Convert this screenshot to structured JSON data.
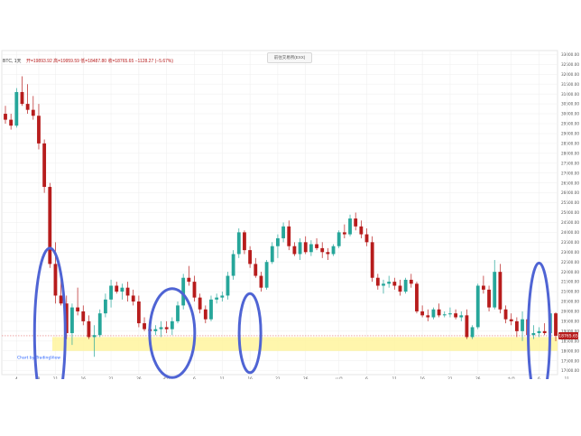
{
  "top_badge": "前往交易所(EXX)",
  "header": {
    "symbol": "BTC, 1天",
    "ohlc": "开=19893.92  高=19959.59  低=18487.80  收=18765.65  −1128.27 (−5.67%)"
  },
  "watermark": "Chart by TradingView",
  "current_price_label": "18765.65",
  "colors": {
    "up": "#26a69a",
    "down": "#b71c1c",
    "highlight_band": "#fff59d",
    "circle": "#4f64d4",
    "price_line": "#e57373"
  },
  "chart_data": {
    "type": "candlestick",
    "title": "BTC, 1天",
    "ylim": [
      16800,
      33200
    ],
    "y_ticks": [
      "17000.00",
      "17500.00",
      "18000.00",
      "18500.00",
      "19000.00",
      "19500.00",
      "20000.00",
      "20500.00",
      "21000.00",
      "21500.00",
      "22000.00",
      "22500.00",
      "23000.00",
      "23500.00",
      "24000.00",
      "24500.00",
      "25000.00",
      "25500.00",
      "26000.00",
      "26500.00",
      "27000.00",
      "27500.00",
      "28000.00",
      "28500.00",
      "29000.00",
      "29500.00",
      "30000.00",
      "30500.00",
      "31000.00",
      "31500.00",
      "32000.00",
      "32500.00",
      "33000.00"
    ],
    "x_ticks": [
      {
        "label": "4",
        "index": 2
      },
      {
        "label": "8",
        "index": 6
      },
      {
        "label": "11",
        "index": 9
      },
      {
        "label": "16",
        "index": 14
      },
      {
        "label": "21",
        "index": 19
      },
      {
        "label": "26",
        "index": 24
      },
      {
        "label": "七月",
        "index": 29
      },
      {
        "label": "6",
        "index": 34
      },
      {
        "label": "11",
        "index": 39
      },
      {
        "label": "16",
        "index": 44
      },
      {
        "label": "21",
        "index": 49
      },
      {
        "label": "26",
        "index": 54
      },
      {
        "label": "八月",
        "index": 60
      },
      {
        "label": "6",
        "index": 65
      },
      {
        "label": "11",
        "index": 70
      },
      {
        "label": "16",
        "index": 75
      },
      {
        "label": "21",
        "index": 80
      },
      {
        "label": "26",
        "index": 85
      },
      {
        "label": "九月",
        "index": 91
      },
      {
        "label": "6",
        "index": 96
      },
      {
        "label": "11",
        "index": 101
      },
      {
        "label": "16",
        "index": 106
      },
      {
        "label": "21",
        "index": 111
      },
      {
        "label": "26",
        "index": 116
      }
    ],
    "candles": [
      [
        30000,
        30400,
        29500,
        29700
      ],
      [
        29700,
        30000,
        29200,
        29400
      ],
      [
        29400,
        31300,
        29300,
        31100
      ],
      [
        31100,
        31900,
        30400,
        30500
      ],
      [
        30500,
        31500,
        30000,
        30200
      ],
      [
        30200,
        30900,
        29700,
        29900
      ],
      [
        29900,
        30500,
        28200,
        28500
      ],
      [
        28500,
        28700,
        26000,
        26300
      ],
      [
        26300,
        26500,
        22200,
        22400
      ],
      [
        22400,
        23500,
        20400,
        20800
      ],
      [
        20800,
        21600,
        20300,
        20400
      ],
      [
        20400,
        20800,
        18600,
        18900
      ],
      [
        18900,
        20400,
        18300,
        20200
      ],
      [
        20200,
        21200,
        19800,
        20000
      ],
      [
        20000,
        20300,
        19300,
        19500
      ],
      [
        19500,
        19800,
        18600,
        18700
      ],
      [
        18700,
        19300,
        17700,
        18800
      ],
      [
        18800,
        20100,
        18700,
        19900
      ],
      [
        19900,
        20900,
        19700,
        20600
      ],
      [
        20600,
        21600,
        20200,
        21300
      ],
      [
        21300,
        21500,
        20900,
        21000
      ],
      [
        21000,
        21400,
        20600,
        21200
      ],
      [
        21200,
        21500,
        20500,
        20800
      ],
      [
        20800,
        21100,
        20300,
        20500
      ],
      [
        20500,
        20800,
        19200,
        19400
      ],
      [
        19400,
        19700,
        19000,
        19100
      ],
      [
        19100,
        19400,
        18900,
        19000
      ],
      [
        19000,
        19300,
        18800,
        19100
      ],
      [
        19100,
        19500,
        18700,
        19200
      ],
      [
        19200,
        19500,
        18900,
        19100
      ],
      [
        19100,
        19700,
        18800,
        19500
      ],
      [
        19500,
        20500,
        19400,
        20300
      ],
      [
        20300,
        21900,
        20100,
        21700
      ],
      [
        21700,
        22300,
        21300,
        21500
      ],
      [
        21500,
        21800,
        20500,
        20700
      ],
      [
        20700,
        20900,
        19900,
        20100
      ],
      [
        20100,
        20300,
        19400,
        19600
      ],
      [
        19600,
        20800,
        19500,
        20600
      ],
      [
        20600,
        20900,
        20400,
        20700
      ],
      [
        20700,
        21000,
        20500,
        20800
      ],
      [
        20800,
        22000,
        20600,
        21800
      ],
      [
        21800,
        23100,
        21600,
        22900
      ],
      [
        22900,
        24200,
        22700,
        24000
      ],
      [
        24000,
        24100,
        22900,
        23100
      ],
      [
        23100,
        23300,
        22200,
        22400
      ],
      [
        22400,
        22700,
        21700,
        21800
      ],
      [
        21800,
        22000,
        21000,
        21200
      ],
      [
        21200,
        22600,
        21100,
        22500
      ],
      [
        22500,
        23500,
        22400,
        23300
      ],
      [
        23300,
        23900,
        22700,
        23700
      ],
      [
        23700,
        24500,
        23500,
        24300
      ],
      [
        24300,
        24600,
        23100,
        23300
      ],
      [
        23300,
        23500,
        22800,
        22900
      ],
      [
        22900,
        23700,
        22600,
        23500
      ],
      [
        23500,
        23800,
        22900,
        23000
      ],
      [
        23000,
        23600,
        22800,
        23400
      ],
      [
        23400,
        23700,
        23100,
        23200
      ],
      [
        23200,
        23500,
        22700,
        23000
      ],
      [
        23000,
        23200,
        22600,
        22900
      ],
      [
        22900,
        23400,
        22800,
        23300
      ],
      [
        23300,
        24100,
        23200,
        24000
      ],
      [
        24000,
        24400,
        23700,
        23900
      ],
      [
        23900,
        24900,
        23800,
        24700
      ],
      [
        24700,
        25000,
        24100,
        24300
      ],
      [
        24300,
        24600,
        23700,
        23900
      ],
      [
        23900,
        24200,
        23300,
        23500
      ],
      [
        23500,
        23800,
        21500,
        21700
      ],
      [
        21700,
        21900,
        21100,
        21300
      ],
      [
        21300,
        21600,
        20900,
        21400
      ],
      [
        21400,
        21800,
        21200,
        21500
      ],
      [
        21500,
        21700,
        21100,
        21300
      ],
      [
        21300,
        21600,
        20800,
        21000
      ],
      [
        21000,
        21700,
        20900,
        21600
      ],
      [
        21600,
        21900,
        21200,
        21400
      ],
      [
        21400,
        21500,
        19900,
        20000
      ],
      [
        20000,
        20300,
        19700,
        19800
      ],
      [
        19800,
        20100,
        19500,
        19700
      ],
      [
        19700,
        20200,
        19600,
        20100
      ],
      [
        20100,
        20400,
        19700,
        19800
      ],
      [
        19800,
        20000,
        19700,
        19850
      ],
      [
        19850,
        20200,
        19700,
        19900
      ],
      [
        19900,
        20100,
        19600,
        19700
      ],
      [
        19700,
        20000,
        19500,
        19800
      ],
      [
        19800,
        20100,
        18600,
        18700
      ],
      [
        18700,
        19300,
        18600,
        19200
      ],
      [
        19200,
        21400,
        19100,
        21300
      ],
      [
        21300,
        21800,
        20900,
        21100
      ],
      [
        21100,
        21300,
        20000,
        20200
      ],
      [
        20200,
        22600,
        20100,
        22000
      ],
      [
        22000,
        22400,
        19900,
        20100
      ],
      [
        20100,
        20300,
        19400,
        19600
      ],
      [
        19600,
        19900,
        19300,
        19500
      ],
      [
        19500,
        19700,
        18700,
        19000
      ],
      [
        19000,
        20000,
        18500,
        19600
      ],
      [
        19600,
        19900,
        18700,
        18800
      ],
      [
        18800,
        19300,
        18600,
        18900
      ],
      [
        18900,
        19200,
        18700,
        19000
      ],
      [
        19000,
        19400,
        18800,
        18900
      ],
      [
        18900,
        20100,
        18800,
        19900
      ],
      [
        19900,
        19960,
        18490,
        18766
      ]
    ],
    "highlight_band": [
      18000,
      18700
    ],
    "current_price": 18765.65
  }
}
